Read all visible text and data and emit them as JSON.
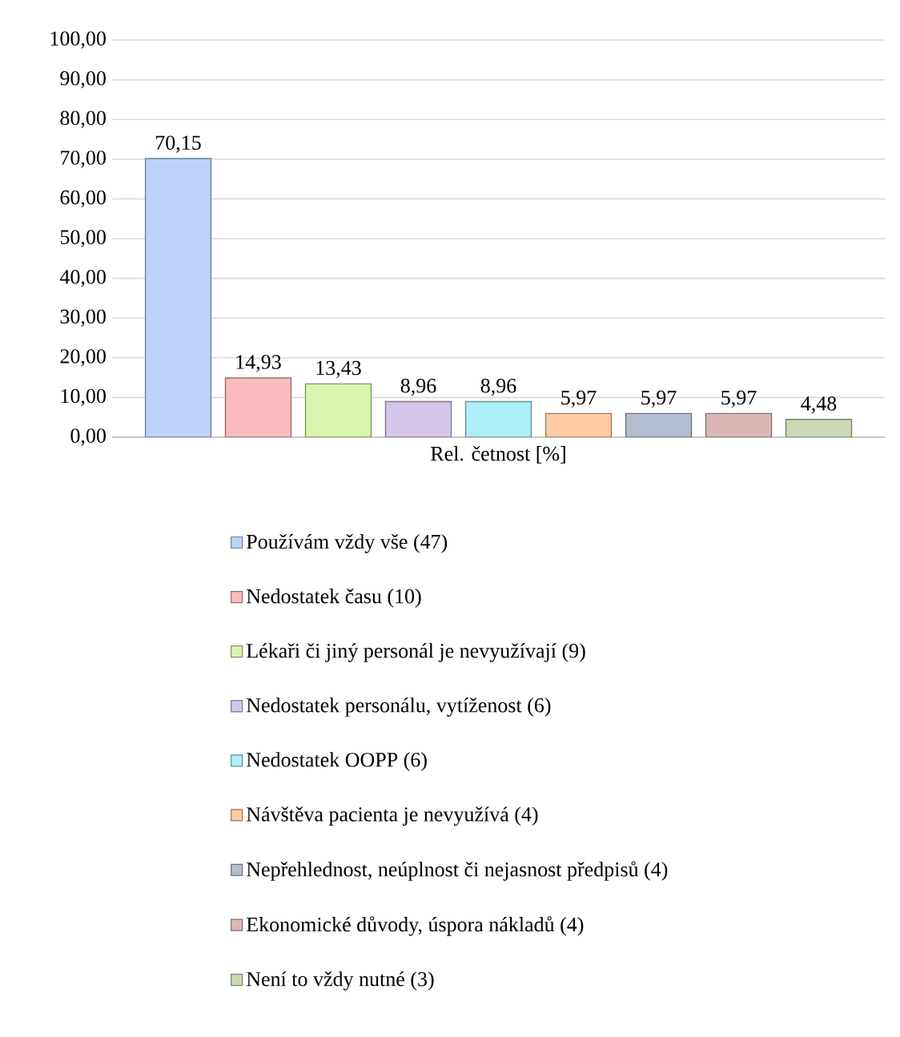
{
  "chart_data": {
    "type": "bar",
    "categories": [
      "Rel. četnost [%]"
    ],
    "series": [
      {
        "name": "Používám vždy vše (47)",
        "color": "#bcd3f9",
        "values": [
          70.15
        ],
        "value_labels": [
          "70,15"
        ]
      },
      {
        "name": "Nedostatek času (10)",
        "color": "#f9bcbc",
        "values": [
          14.93
        ],
        "value_labels": [
          "14,93"
        ]
      },
      {
        "name": "Lékaři či jiný personál je nevyužívají (9)",
        "color": "#d8f5ae",
        "values": [
          13.43
        ],
        "value_labels": [
          "13,43"
        ]
      },
      {
        "name": "Nedostatek personálu, vytíženost (6)",
        "color": "#d5c6ec",
        "values": [
          8.96
        ],
        "value_labels": [
          "8,96"
        ]
      },
      {
        "name": "Nedostatek OOPP (6)",
        "color": "#aeeef8",
        "values": [
          8.96
        ],
        "value_labels": [
          "8,96"
        ]
      },
      {
        "name": "Návštěva pacienta je nevyužívá (4)",
        "color": "#fccba4",
        "values": [
          5.97
        ],
        "value_labels": [
          "5,97"
        ]
      },
      {
        "name": "Nepřehlednost, neúplnost či nejasnost předpisů (4)",
        "color": "#b3bdcf",
        "values": [
          5.97
        ],
        "value_labels": [
          "5,97"
        ]
      },
      {
        "name": "Ekonomické důvody, úspora nákladů (4)",
        "color": "#dcb7b7",
        "values": [
          5.97
        ],
        "value_labels": [
          "5,97"
        ]
      },
      {
        "name": "Není to vždy nutné (3)",
        "color": "#cbdab4",
        "values": [
          4.48
        ],
        "value_labels": [
          "4,48"
        ]
      }
    ],
    "ylim": [
      0,
      100
    ],
    "yticks": [
      {
        "value": 0,
        "label": "0,00"
      },
      {
        "value": 10,
        "label": "10,00"
      },
      {
        "value": 20,
        "label": "20,00"
      },
      {
        "value": 30,
        "label": "30,00"
      },
      {
        "value": 40,
        "label": "40,00"
      },
      {
        "value": 50,
        "label": "50,00"
      },
      {
        "value": 60,
        "label": "60,00"
      },
      {
        "value": 70,
        "label": "70,00"
      },
      {
        "value": 80,
        "label": "80,00"
      },
      {
        "value": 90,
        "label": "90,00"
      },
      {
        "value": 100,
        "label": "100,00"
      }
    ],
    "grid": "y",
    "legend": "bottom"
  }
}
